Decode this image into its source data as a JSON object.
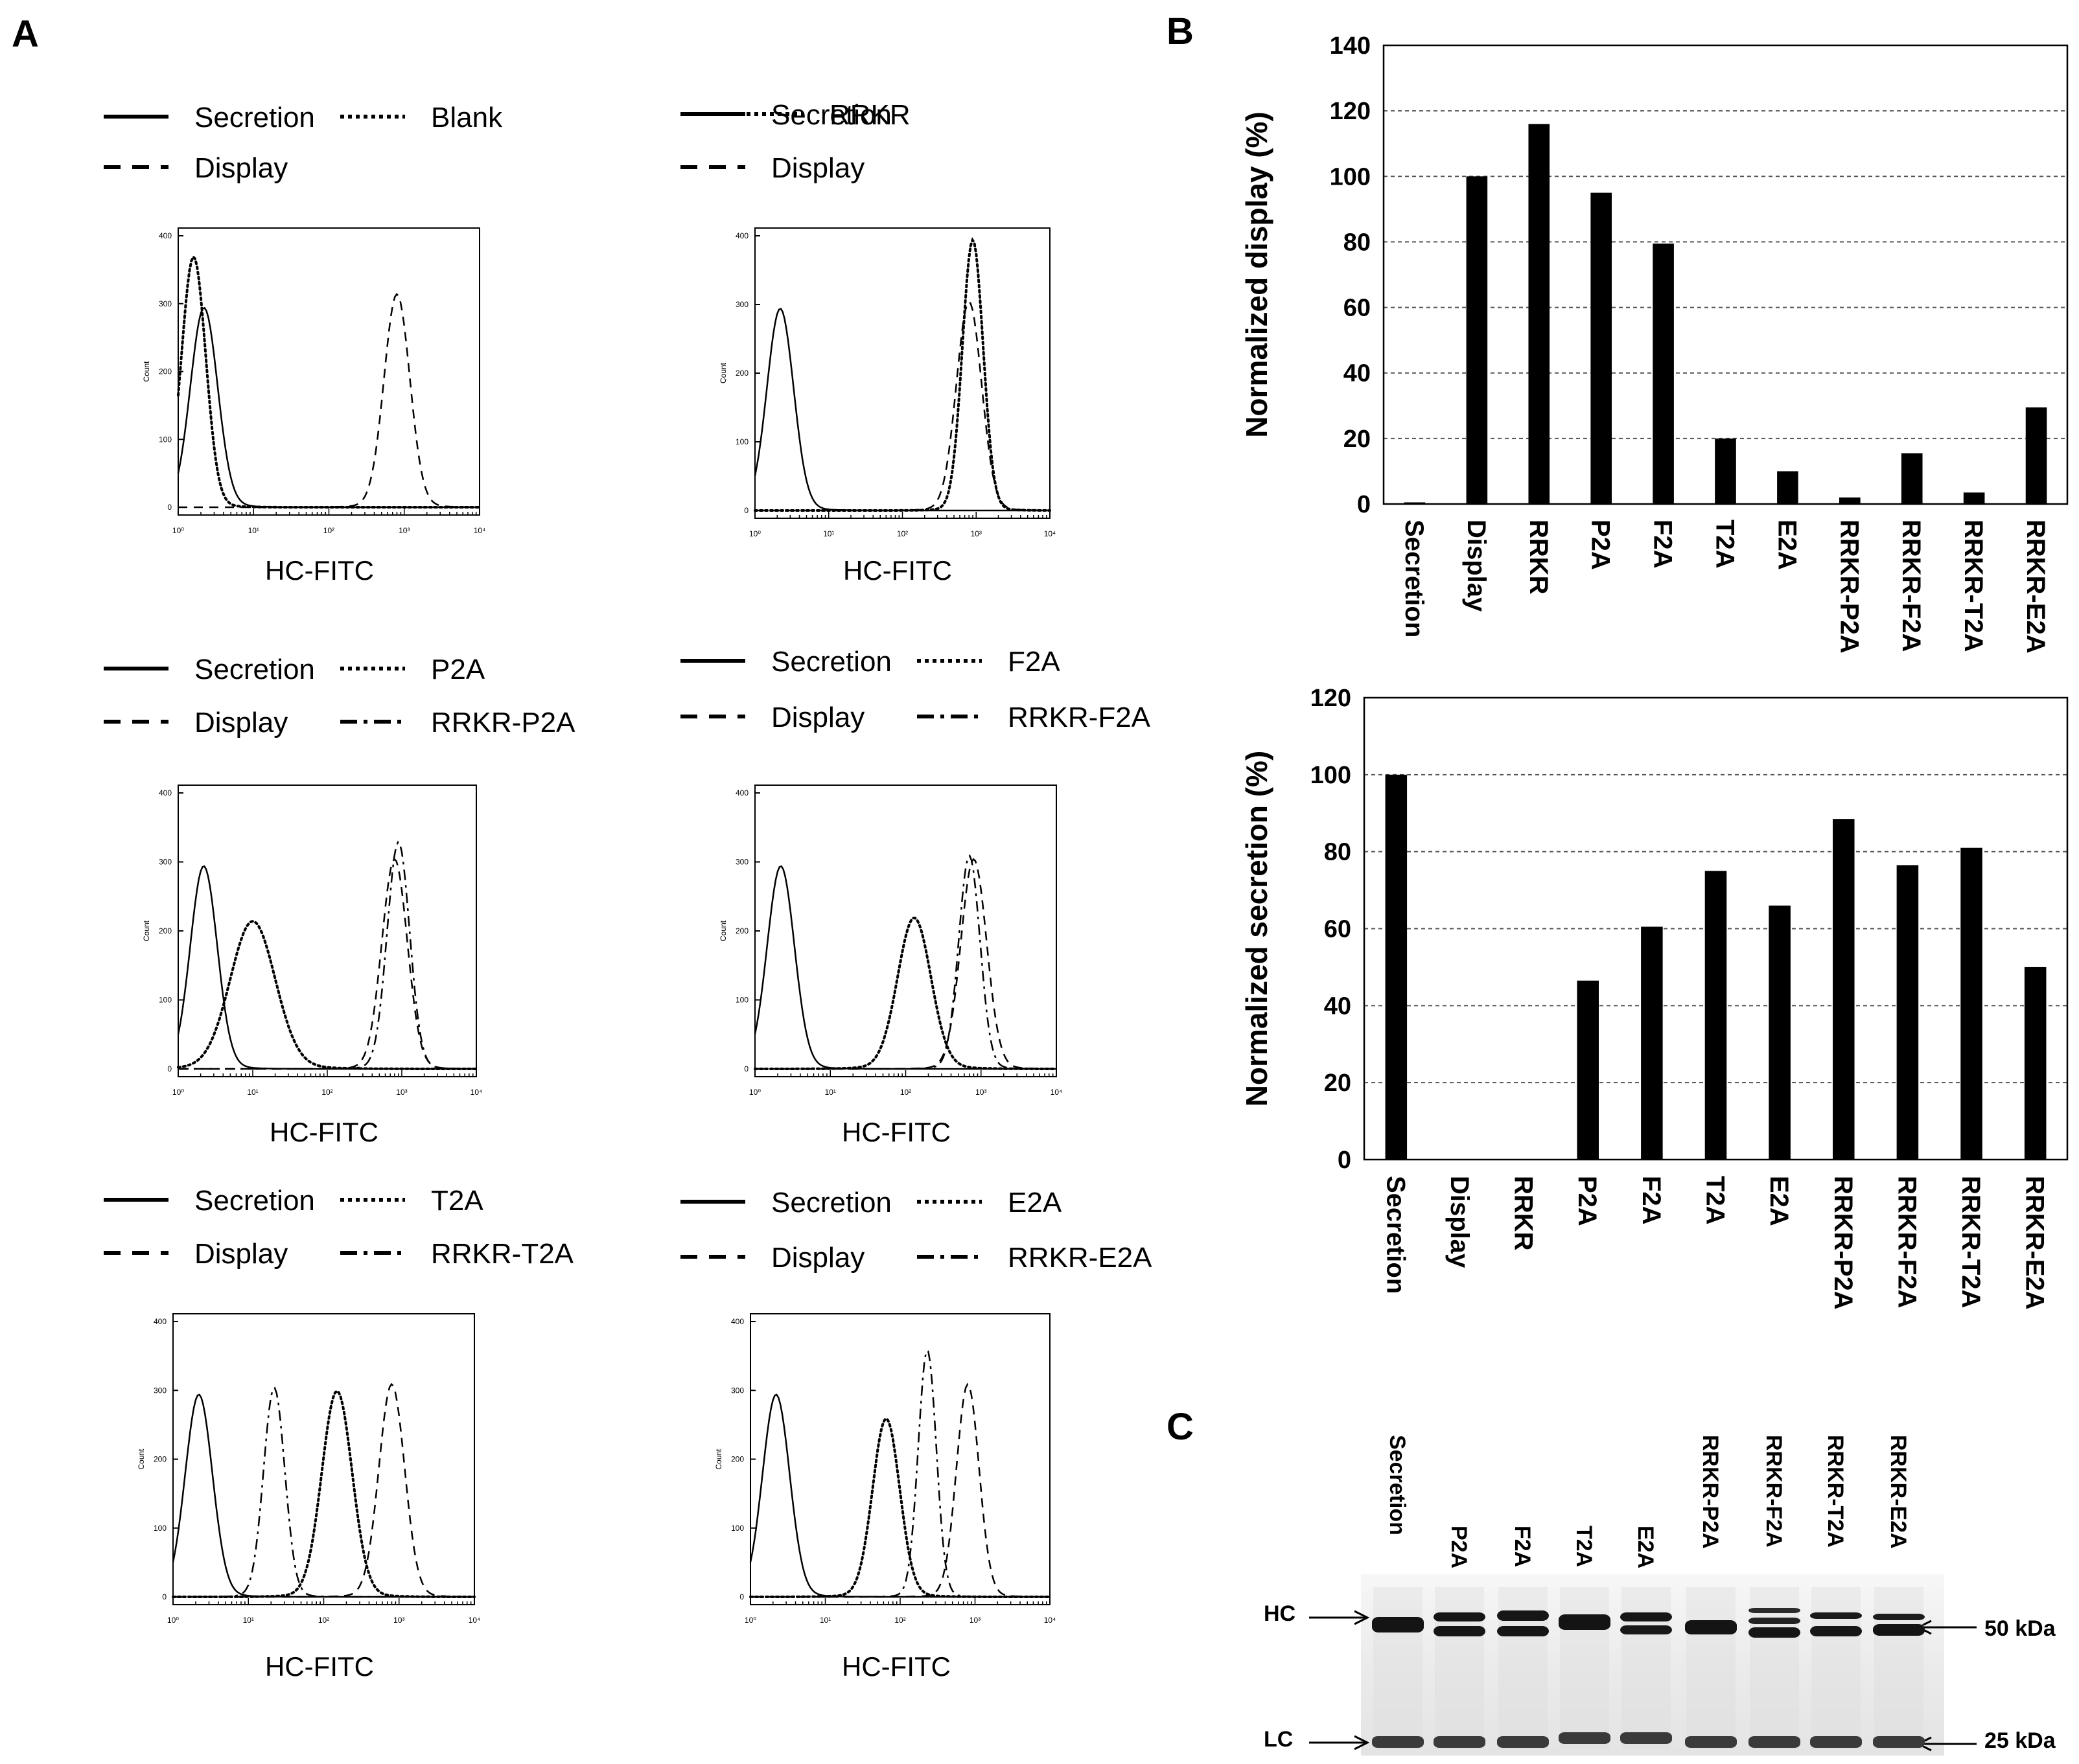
{
  "panels": {
    "a": "A",
    "b": "B",
    "c": "C"
  },
  "chart_data": [
    {
      "type": "line",
      "title": "",
      "xlabel": "HC-FITC",
      "ylabel": "Count",
      "xscale": "log",
      "xlim": [
        1,
        10000
      ],
      "ylim": [
        0,
        400
      ],
      "xtick_labels": [
        "10⁰",
        "10¹",
        "10²",
        "10³",
        "10⁴"
      ],
      "ytick_labels": [
        "0",
        "100",
        "200",
        "300",
        "400"
      ],
      "legend": [
        "Secretion",
        "Blank",
        "Display"
      ],
      "series": [
        {
          "name": "Secretion",
          "style": "solid",
          "peak_x": 2.2,
          "peak_y": 290,
          "width": 0.18
        },
        {
          "name": "Blank",
          "style": "dotted",
          "peak_x": 1.6,
          "peak_y": 365,
          "width": 0.16
        },
        {
          "name": "Display",
          "style": "dashed",
          "peak_x": 800,
          "peak_y": 310,
          "width": 0.17
        }
      ]
    },
    {
      "type": "line",
      "title": "",
      "xlabel": "HC-FITC",
      "ylabel": "Count",
      "xscale": "log",
      "xlim": [
        1,
        10000
      ],
      "ylim": [
        0,
        400
      ],
      "xtick_labels": [
        "10⁰",
        "10¹",
        "10²",
        "10³",
        "10⁴"
      ],
      "ytick_labels": [
        "0",
        "100",
        "200",
        "300",
        "400"
      ],
      "legend": [
        "Secretion",
        "RRKR",
        "Display"
      ],
      "series": [
        {
          "name": "Secretion",
          "style": "solid",
          "peak_x": 2.2,
          "peak_y": 290,
          "width": 0.18
        },
        {
          "name": "RRKR",
          "style": "dotted",
          "peak_x": 900,
          "peak_y": 390,
          "width": 0.14
        },
        {
          "name": "Display",
          "style": "dashed",
          "peak_x": 800,
          "peak_y": 300,
          "width": 0.17
        }
      ]
    },
    {
      "type": "line",
      "title": "",
      "xlabel": "HC-FITC",
      "ylabel": "Count",
      "xscale": "log",
      "xlim": [
        1,
        10000
      ],
      "ylim": [
        0,
        400
      ],
      "xtick_labels": [
        "10⁰",
        "10¹",
        "10²",
        "10³",
        "10⁴"
      ],
      "ytick_labels": [
        "0",
        "100",
        "200",
        "300",
        "400"
      ],
      "legend": [
        "Secretion",
        "P2A",
        "Display",
        "RRKR-P2A"
      ],
      "series": [
        {
          "name": "Secretion",
          "style": "solid",
          "peak_x": 2.2,
          "peak_y": 290,
          "width": 0.18
        },
        {
          "name": "P2A",
          "style": "dotted",
          "peak_x": 10,
          "peak_y": 210,
          "width": 0.3
        },
        {
          "name": "Display",
          "style": "dashed",
          "peak_x": 800,
          "peak_y": 300,
          "width": 0.17
        },
        {
          "name": "RRKR-P2A",
          "style": "dashdot",
          "peak_x": 900,
          "peak_y": 325,
          "width": 0.15
        }
      ]
    },
    {
      "type": "line",
      "title": "",
      "xlabel": "HC-FITC",
      "ylabel": "Count",
      "xscale": "log",
      "xlim": [
        1,
        10000
      ],
      "ylim": [
        0,
        400
      ],
      "xtick_labels": [
        "10⁰",
        "10¹",
        "10²",
        "10³",
        "10⁴"
      ],
      "ytick_labels": [
        "0",
        "100",
        "200",
        "300",
        "400"
      ],
      "legend": [
        "Secretion",
        "F2A",
        "Display",
        "RRKR-F2A"
      ],
      "series": [
        {
          "name": "Secretion",
          "style": "solid",
          "peak_x": 2.2,
          "peak_y": 290,
          "width": 0.18
        },
        {
          "name": "F2A",
          "style": "dotted",
          "peak_x": 130,
          "peak_y": 215,
          "width": 0.22
        },
        {
          "name": "Display",
          "style": "dashed",
          "peak_x": 800,
          "peak_y": 300,
          "width": 0.17
        },
        {
          "name": "RRKR-F2A",
          "style": "dashdot",
          "peak_x": 700,
          "peak_y": 305,
          "width": 0.14
        }
      ]
    },
    {
      "type": "line",
      "title": "",
      "xlabel": "HC-FITC",
      "ylabel": "Count",
      "xscale": "log",
      "xlim": [
        1,
        10000
      ],
      "ylim": [
        0,
        400
      ],
      "xtick_labels": [
        "10⁰",
        "10¹",
        "10²",
        "10³",
        "10⁴"
      ],
      "ytick_labels": [
        "0",
        "100",
        "200",
        "300",
        "400"
      ],
      "legend": [
        "Secretion",
        "T2A",
        "Display",
        "RRKR-T2A"
      ],
      "series": [
        {
          "name": "Secretion",
          "style": "solid",
          "peak_x": 2.2,
          "peak_y": 290,
          "width": 0.18
        },
        {
          "name": "T2A",
          "style": "dotted",
          "peak_x": 150,
          "peak_y": 295,
          "width": 0.2
        },
        {
          "name": "Display",
          "style": "dashed",
          "peak_x": 800,
          "peak_y": 305,
          "width": 0.17
        },
        {
          "name": "RRKR-T2A",
          "style": "dashdot",
          "peak_x": 22,
          "peak_y": 300,
          "width": 0.14
        }
      ]
    },
    {
      "type": "line",
      "title": "",
      "xlabel": "HC-FITC",
      "ylabel": "Count",
      "xscale": "log",
      "xlim": [
        1,
        10000
      ],
      "ylim": [
        0,
        400
      ],
      "xtick_labels": [
        "10⁰",
        "10¹",
        "10²",
        "10³",
        "10⁴"
      ],
      "ytick_labels": [
        "0",
        "100",
        "200",
        "300",
        "400"
      ],
      "legend": [
        "Secretion",
        "E2A",
        "Display",
        "RRKR-E2A"
      ],
      "series": [
        {
          "name": "Secretion",
          "style": "solid",
          "peak_x": 2.2,
          "peak_y": 290,
          "width": 0.18
        },
        {
          "name": "E2A",
          "style": "dotted",
          "peak_x": 65,
          "peak_y": 255,
          "width": 0.18
        },
        {
          "name": "Display",
          "style": "dashed",
          "peak_x": 800,
          "peak_y": 305,
          "width": 0.15
        },
        {
          "name": "RRKR-E2A",
          "style": "dashdot",
          "peak_x": 230,
          "peak_y": 355,
          "width": 0.12
        }
      ]
    },
    {
      "type": "bar",
      "title": "",
      "xlabel": "",
      "ylabel": "Normalized display (%)",
      "ylim": [
        0,
        140
      ],
      "yticks": [
        0,
        20,
        40,
        60,
        80,
        100,
        120,
        140
      ],
      "grid": true,
      "categories": [
        "Secretion",
        "Display",
        "RRKR",
        "P2A",
        "F2A",
        "T2A",
        "E2A",
        "RRKR-P2A",
        "RRKR-F2A",
        "RRKR-T2A",
        "RRKR-E2A"
      ],
      "values": [
        0.5,
        100,
        116,
        95,
        79.5,
        20,
        10,
        2,
        15.5,
        3.5,
        29.5
      ]
    },
    {
      "type": "bar",
      "title": "",
      "xlabel": "",
      "ylabel": "Normalized secretion (%)",
      "ylim": [
        0,
        120
      ],
      "yticks": [
        0,
        20,
        40,
        60,
        80,
        100,
        120
      ],
      "grid": true,
      "categories": [
        "Secretion",
        "Display",
        "RRKR",
        "P2A",
        "F2A",
        "T2A",
        "E2A",
        "RRKR-P2A",
        "RRKR-F2A",
        "RRKR-T2A",
        "RRKR-E2A"
      ],
      "values": [
        100,
        0,
        0,
        46.5,
        60.5,
        75,
        66,
        88.5,
        76.5,
        81,
        50
      ]
    }
  ],
  "gel": {
    "lanes": [
      "Secretion",
      "P2A",
      "F2A",
      "T2A",
      "E2A",
      "RRKR-P2A",
      "RRKR-F2A",
      "RRKR-T2A",
      "RRKR-E2A"
    ],
    "left_labels": {
      "hc": "HC",
      "lc": "LC"
    },
    "right_labels": {
      "hc": "50 kDa",
      "lc": "25 kDa"
    }
  }
}
